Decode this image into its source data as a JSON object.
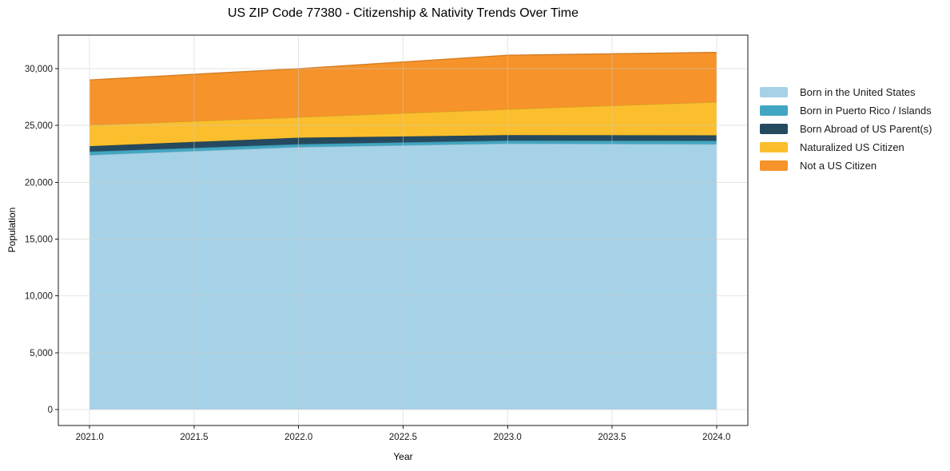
{
  "title": "US ZIP Code 77380 - Citizenship & Nativity Trends Over Time",
  "chart_data": {
    "type": "area",
    "stacked": true,
    "title": "US ZIP Code 77380 - Citizenship & Nativity Trends Over Time",
    "xlabel": "Year",
    "ylabel": "Population",
    "x": [
      2021,
      2022,
      2023,
      2024
    ],
    "series": [
      {
        "name": "Born in the United States",
        "color": "#A6D2E7",
        "values": [
          22400,
          23100,
          23400,
          23350
        ]
      },
      {
        "name": "Born in Puerto Rico / Islands",
        "color": "#42A6C2",
        "values": [
          300,
          250,
          270,
          300
        ]
      },
      {
        "name": "Born Abroad of US Parent(s)",
        "color": "#254A5F",
        "values": [
          480,
          570,
          480,
          480
        ]
      },
      {
        "name": "Naturalized US Citizen",
        "color": "#FBBF2D",
        "values": [
          1850,
          1810,
          2280,
          2930
        ]
      },
      {
        "name": "Not a US Citizen",
        "color": "#F6932A",
        "values": [
          3980,
          4270,
          4750,
          4370
        ]
      }
    ],
    "totals": [
      29010,
      30000,
      31180,
      31430
    ],
    "xlim": [
      2020.85,
      2024.15
    ],
    "ylim": [
      -1405,
      32950
    ],
    "x_ticks": [
      {
        "value": 2021.0,
        "label": "2021.0"
      },
      {
        "value": 2021.5,
        "label": "2021.5"
      },
      {
        "value": 2022.0,
        "label": "2022.0"
      },
      {
        "value": 2022.5,
        "label": "2022.5"
      },
      {
        "value": 2023.0,
        "label": "2023.0"
      },
      {
        "value": 2023.5,
        "label": "2023.5"
      },
      {
        "value": 2024.0,
        "label": "2024.0"
      }
    ],
    "y_ticks": [
      {
        "value": 0,
        "label": "0"
      },
      {
        "value": 5000,
        "label": "5,000"
      },
      {
        "value": 10000,
        "label": "10,000"
      },
      {
        "value": 15000,
        "label": "15,000"
      },
      {
        "value": 20000,
        "label": "20,000"
      },
      {
        "value": 25000,
        "label": "25,000"
      },
      {
        "value": 30000,
        "label": "30,000"
      }
    ],
    "grid": true,
    "legend_position": "right-outside"
  },
  "colors": {
    "frame": "#1a1a1a",
    "grid": "#cccccc",
    "tick_label": "#1a1a1a",
    "background": "#ffffff"
  }
}
